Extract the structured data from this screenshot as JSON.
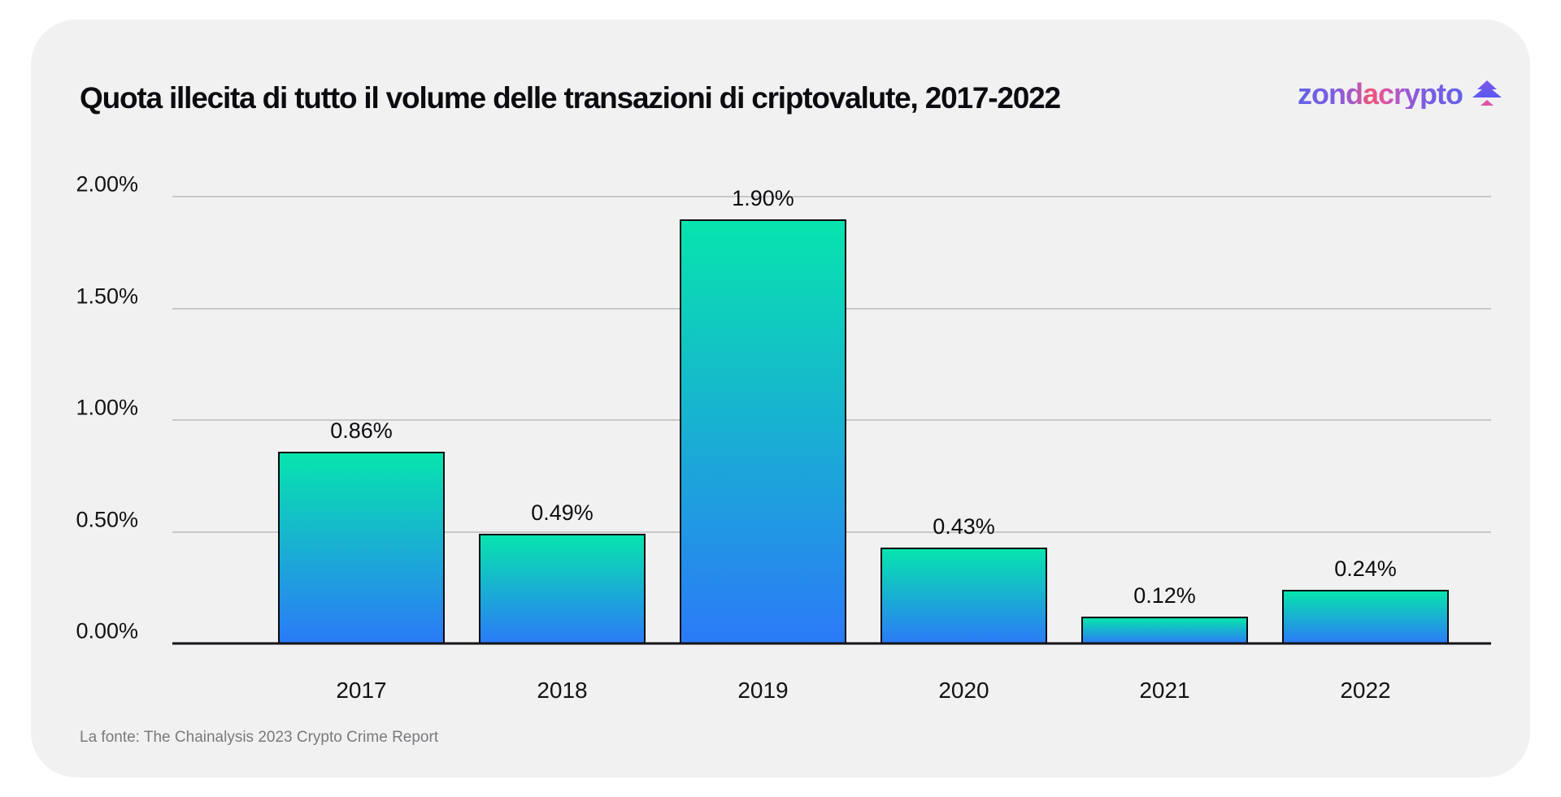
{
  "header": {
    "title": "Quota illecita di tutto il volume delle transazioni di criptovalute, 2017-2022",
    "logo_text": "zondacrypto"
  },
  "chart_data": {
    "type": "bar",
    "title": "Quota illecita di tutto il volume delle transazioni di criptovalute, 2017-2022",
    "categories": [
      "2017",
      "2018",
      "2019",
      "2020",
      "2021",
      "2022"
    ],
    "values": [
      0.86,
      0.49,
      1.9,
      0.43,
      0.12,
      0.24
    ],
    "value_labels": [
      "0.86%",
      "0.49%",
      "1.90%",
      "0.43%",
      "0.12%",
      "0.24%"
    ],
    "xlabel": "",
    "ylabel": "",
    "ylim": [
      0,
      2.0
    ],
    "yticks": [
      {
        "value": 0.0,
        "label": "0.00%"
      },
      {
        "value": 0.5,
        "label": "0.50%"
      },
      {
        "value": 1.0,
        "label": "1.00%"
      },
      {
        "value": 1.5,
        "label": "1.50%"
      },
      {
        "value": 2.0,
        "label": "2.00%"
      }
    ],
    "grid": true,
    "legend": false,
    "colors": {
      "bar_gradient_top": "#07e4ae",
      "bar_gradient_bottom": "#2b7af7",
      "bar_border": "#0a0a0f",
      "gridline": "#c8c8ca",
      "axis_line": "#141418"
    }
  },
  "footer": {
    "source": "La fonte: The Chainalysis 2023 Crypto Crime Report"
  },
  "brand": {
    "logo_gradient_start": "#6163e4",
    "logo_gradient_pink": "#ef5577",
    "logo_gradient_end": "#6462e6",
    "tree_purple_top": "#7e58e8",
    "tree_purple_bottom": "#5a5af2",
    "tree_trunk_pink": "#e055a8"
  }
}
